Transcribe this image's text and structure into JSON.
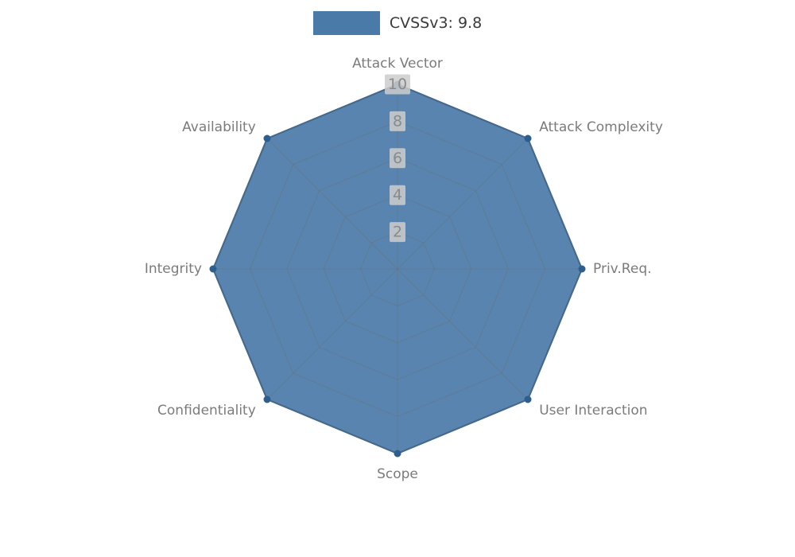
{
  "legend": {
    "label": "CVSSv3: 9.8",
    "swatch_color": "#4a7aa8"
  },
  "chart_data": {
    "type": "radar",
    "title": "CVSSv3: 9.8",
    "categories": [
      "Attack Vector",
      "Attack Complexity",
      "Priv.Req.",
      "User Interaction",
      "Scope",
      "Confidentiality",
      "Integrity",
      "Availability"
    ],
    "series": [
      {
        "name": "CVSSv3: 9.8",
        "values": [
          10,
          10,
          10,
          10,
          10,
          10,
          10,
          10
        ],
        "color": "#4a7aa8"
      }
    ],
    "rlim": [
      0,
      10
    ],
    "ticks": [
      2,
      4,
      6,
      8,
      10
    ],
    "grid": true,
    "grid_sides": 8,
    "legend_position": "top"
  },
  "style": {
    "fill_opacity": 0.92,
    "grid_color": "#6f6f6f",
    "grid_opacity": 0.4,
    "marker_color": "#2e5e8e",
    "outline_color": "#39658f",
    "tick_bg_color": "#cccccc",
    "tick_bg_opacity": 0.85,
    "axis_label_color": "#7b7b7b",
    "tick_label_color": "#8a8a8a"
  }
}
